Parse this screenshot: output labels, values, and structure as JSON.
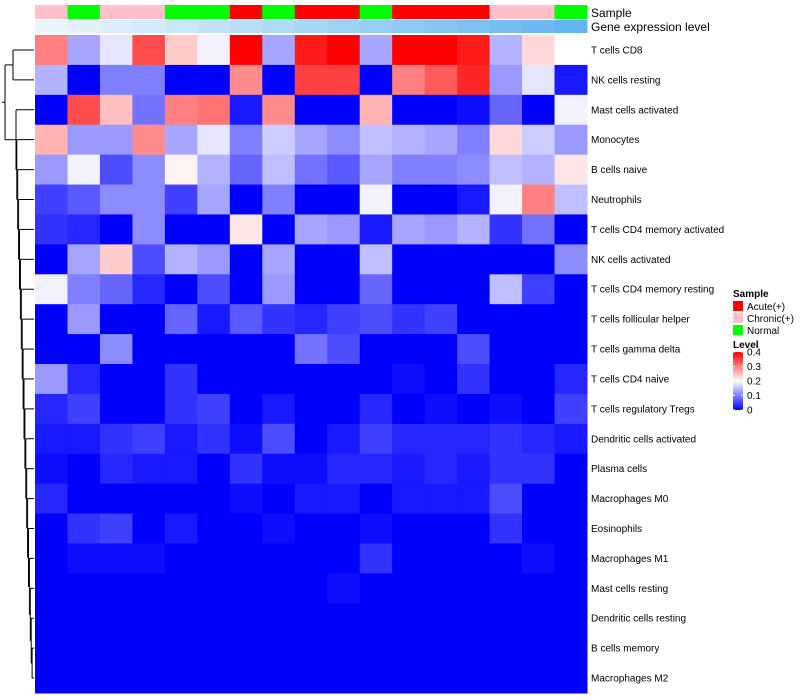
{
  "chart_data": {
    "type": "heatmap",
    "annotation_titles": {
      "sample": "Sample",
      "level": "Gene expression level"
    },
    "sample_groups": [
      "Chronic(+)",
      "Normal",
      "Chronic(+)",
      "Chronic(+)",
      "Normal",
      "Normal",
      "Acute(+)",
      "Normal",
      "Acute(+)",
      "Acute(+)",
      "Normal",
      "Acute(+)",
      "Acute(+)",
      "Acute(+)",
      "Chronic(+)",
      "Chronic(+)",
      "Normal"
    ],
    "expression_level_colors": [
      "#eaf4fb",
      "#e4f1fb",
      "#dbeefb",
      "#d3eafa",
      "#cae6f9",
      "#c1e2f8",
      "#b8def8",
      "#b0daf7",
      "#a8d6f6",
      "#9fd2f5",
      "#96cef5",
      "#8ecaf4",
      "#85c6f3",
      "#7dc2f2",
      "#74bef2",
      "#6cbaf1",
      "#62b5f0"
    ],
    "rows": [
      "T cells CD8",
      "NK cells resting",
      "Mast cells activated",
      "Monocytes",
      "B cells naive",
      "Neutrophils",
      "T cells CD4 memory activated",
      "NK cells activated",
      "T cells CD4 memory resting",
      "T cells follicular helper",
      "T cells gamma delta",
      "T cells CD4 naive",
      "T cells regulatory  Tregs",
      "Dendritic cells activated",
      "Plasma cells",
      "Macrophages M0",
      "Eosinophils",
      "Macrophages M1",
      "Mast cells resting",
      "Dendritic cells resting",
      "B cells memory",
      "Macrophages M2"
    ],
    "values": [
      [
        0.3,
        0.13,
        0.18,
        0.34,
        0.24,
        0.19,
        0.4,
        0.13,
        0.38,
        0.4,
        0.13,
        0.4,
        0.4,
        0.38,
        0.14,
        0.23,
        0.2
      ],
      [
        0.14,
        0.0,
        0.1,
        0.1,
        0.0,
        0.0,
        0.29,
        0.0,
        0.35,
        0.35,
        0.0,
        0.3,
        0.33,
        0.37,
        0.12,
        0.18,
        0.02
      ],
      [
        0.0,
        0.34,
        0.25,
        0.09,
        0.3,
        0.31,
        0.02,
        0.29,
        0.0,
        0.0,
        0.26,
        0.0,
        0.0,
        0.01,
        0.08,
        0.0,
        0.19
      ],
      [
        0.26,
        0.12,
        0.12,
        0.29,
        0.13,
        0.18,
        0.1,
        0.16,
        0.13,
        0.11,
        0.15,
        0.14,
        0.13,
        0.1,
        0.23,
        0.16,
        0.12
      ],
      [
        0.12,
        0.19,
        0.06,
        0.11,
        0.21,
        0.14,
        0.08,
        0.15,
        0.09,
        0.07,
        0.13,
        0.1,
        0.1,
        0.11,
        0.15,
        0.14,
        0.22
      ],
      [
        0.05,
        0.07,
        0.11,
        0.11,
        0.05,
        0.13,
        0.0,
        0.1,
        0.0,
        0.0,
        0.19,
        0.0,
        0.0,
        0.02,
        0.19,
        0.3,
        0.15
      ],
      [
        0.04,
        0.03,
        0.0,
        0.11,
        0.0,
        0.0,
        0.22,
        0.0,
        0.13,
        0.12,
        0.02,
        0.13,
        0.12,
        0.14,
        0.04,
        0.09,
        0.0
      ],
      [
        0.0,
        0.13,
        0.24,
        0.06,
        0.14,
        0.12,
        0.0,
        0.13,
        0.0,
        0.0,
        0.15,
        0.0,
        0.0,
        0.0,
        0.0,
        0.0,
        0.11
      ],
      [
        0.19,
        0.1,
        0.08,
        0.03,
        0.0,
        0.06,
        0.0,
        0.12,
        0.0,
        0.0,
        0.08,
        0.0,
        0.0,
        0.0,
        0.15,
        0.05,
        0.0
      ],
      [
        0.0,
        0.12,
        0.0,
        0.0,
        0.08,
        0.02,
        0.07,
        0.04,
        0.03,
        0.05,
        0.06,
        0.04,
        0.05,
        0.0,
        0.0,
        0.0,
        0.0
      ],
      [
        0.0,
        0.0,
        0.11,
        0.0,
        0.0,
        0.0,
        0.0,
        0.0,
        0.09,
        0.06,
        0.0,
        0.0,
        0.0,
        0.06,
        0.0,
        0.0,
        0.0
      ],
      [
        0.12,
        0.03,
        0.0,
        0.0,
        0.04,
        0.0,
        0.0,
        0.0,
        0.0,
        0.0,
        0.0,
        0.01,
        0.0,
        0.04,
        0.0,
        0.0,
        0.03
      ],
      [
        0.03,
        0.05,
        0.0,
        0.0,
        0.04,
        0.05,
        0.0,
        0.02,
        0.0,
        0.0,
        0.03,
        0.0,
        0.01,
        0.0,
        0.01,
        0.0,
        0.05
      ],
      [
        0.02,
        0.02,
        0.04,
        0.05,
        0.02,
        0.04,
        0.01,
        0.06,
        0.0,
        0.02,
        0.05,
        0.03,
        0.03,
        0.03,
        0.04,
        0.03,
        0.02
      ],
      [
        0.01,
        0.0,
        0.03,
        0.02,
        0.02,
        0.0,
        0.04,
        0.01,
        0.01,
        0.03,
        0.03,
        0.02,
        0.03,
        0.02,
        0.04,
        0.04,
        0.0
      ],
      [
        0.03,
        0.0,
        0.0,
        0.0,
        0.0,
        0.0,
        0.01,
        0.0,
        0.02,
        0.02,
        0.0,
        0.02,
        0.02,
        0.02,
        0.06,
        0.0,
        0.0
      ],
      [
        0.0,
        0.04,
        0.05,
        0.0,
        0.02,
        0.0,
        0.0,
        0.01,
        0.0,
        0.0,
        0.01,
        0.0,
        0.0,
        0.0,
        0.04,
        0.0,
        0.0
      ],
      [
        0.0,
        0.01,
        0.01,
        0.01,
        0.0,
        0.0,
        0.0,
        0.0,
        0.0,
        0.0,
        0.04,
        0.0,
        0.0,
        0.0,
        0.0,
        0.01,
        0.0
      ],
      [
        0.0,
        0.0,
        0.0,
        0.0,
        0.0,
        0.0,
        0.0,
        0.0,
        0.0,
        0.01,
        0.0,
        0.0,
        0.0,
        0.0,
        0.0,
        0.0,
        0.0
      ],
      [
        0.0,
        0.0,
        0.0,
        0.0,
        0.0,
        0.0,
        0.0,
        0.0,
        0.0,
        0.0,
        0.0,
        0.0,
        0.0,
        0.0,
        0.0,
        0.0,
        0.0
      ],
      [
        0.0,
        0.0,
        0.0,
        0.0,
        0.0,
        0.0,
        0.0,
        0.0,
        0.0,
        0.0,
        0.0,
        0.0,
        0.0,
        0.0,
        0.0,
        0.0,
        0.0
      ],
      [
        0.0,
        0.0,
        0.0,
        0.0,
        0.0,
        0.0,
        0.0,
        0.0,
        0.0,
        0.0,
        0.0,
        0.0,
        0.0,
        0.0,
        0.0,
        0.0,
        0.0
      ]
    ],
    "color_scale": {
      "min": 0.0,
      "mid": 0.2,
      "max": 0.4,
      "low": "#0000ff",
      "midColor": "#ffffff",
      "high": "#ff0000"
    },
    "legend_sample": {
      "title": "Sample",
      "items": [
        {
          "label": "Acute(+)",
          "color": "#ff0000"
        },
        {
          "label": "Chronic(+)",
          "color": "#ffc0cb"
        },
        {
          "label": "Normal",
          "color": "#00ff00"
        }
      ]
    },
    "legend_level": {
      "title": "Level",
      "ticks": [
        "0.4",
        "0.3",
        "0.2",
        "0.1",
        "0"
      ]
    },
    "row_dendrogram": true
  }
}
